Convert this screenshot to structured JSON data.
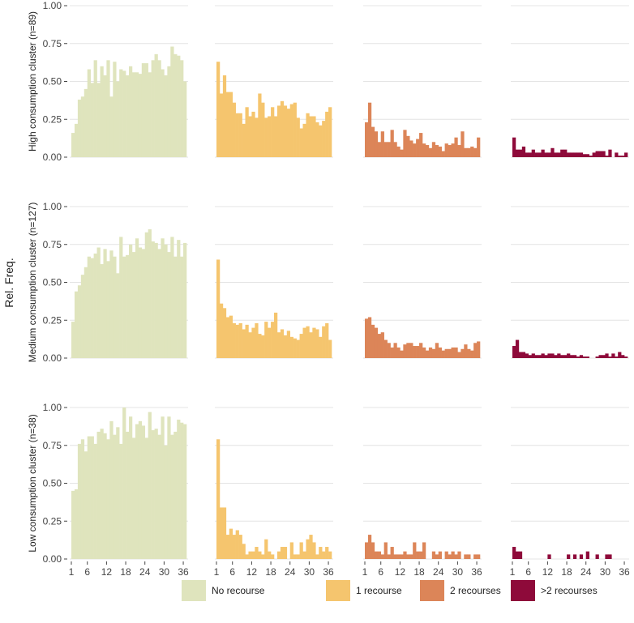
{
  "chart_data": {
    "type": "bar",
    "ylabel": "Rel. Freq.",
    "ylim": [
      0,
      1
    ],
    "yticks": [
      "0.00",
      "0.25",
      "0.50",
      "0.75",
      "1.00"
    ],
    "xticks": [
      "1",
      "6",
      "12",
      "18",
      "24",
      "30",
      "36"
    ],
    "x": [
      1,
      2,
      3,
      4,
      5,
      6,
      7,
      8,
      9,
      10,
      11,
      12,
      13,
      14,
      15,
      16,
      17,
      18,
      19,
      20,
      21,
      22,
      23,
      24,
      25,
      26,
      27,
      28,
      29,
      30,
      31,
      32,
      33,
      34,
      35,
      36
    ],
    "grid": true,
    "legend_position": "bottom",
    "series_meta": [
      {
        "name": "No recourse",
        "color": "#dfe4bd"
      },
      {
        "name": "1 recourse",
        "color": "#f5c56e"
      },
      {
        "name": "2 recourses",
        "color": "#dc8558"
      },
      {
        "name": ">2 recourses",
        "color": "#8e0a3a"
      }
    ],
    "panels": [
      {
        "row_label": "High consumption cluster (n=89)",
        "series": [
          [
            0.16,
            0.22,
            0.38,
            0.4,
            0.45,
            0.58,
            0.49,
            0.64,
            0.49,
            0.6,
            0.54,
            0.64,
            0.4,
            0.63,
            0.5,
            0.58,
            0.57,
            0.54,
            0.6,
            0.56,
            0.56,
            0.55,
            0.62,
            0.62,
            0.56,
            0.64,
            0.68,
            0.64,
            0.58,
            0.54,
            0.6,
            0.73,
            0.68,
            0.67,
            0.64,
            0.5
          ],
          [
            0.63,
            0.42,
            0.54,
            0.43,
            0.43,
            0.36,
            0.29,
            0.29,
            0.22,
            0.33,
            0.27,
            0.3,
            0.26,
            0.42,
            0.36,
            0.26,
            0.27,
            0.33,
            0.27,
            0.34,
            0.37,
            0.34,
            0.32,
            0.35,
            0.36,
            0.26,
            0.19,
            0.22,
            0.29,
            0.27,
            0.27,
            0.23,
            0.21,
            0.24,
            0.3,
            0.33
          ],
          [
            0.23,
            0.36,
            0.2,
            0.17,
            0.1,
            0.17,
            0.1,
            0.1,
            0.18,
            0.1,
            0.07,
            0.05,
            0.18,
            0.14,
            0.11,
            0.09,
            0.12,
            0.16,
            0.09,
            0.08,
            0.06,
            0.1,
            0.08,
            0.07,
            0.04,
            0.09,
            0.08,
            0.09,
            0.13,
            0.08,
            0.17,
            0.06,
            0.06,
            0.07,
            0.06,
            0.13
          ],
          [
            0.13,
            0.05,
            0.05,
            0.07,
            0.03,
            0.03,
            0.05,
            0.03,
            0.03,
            0.05,
            0.03,
            0.03,
            0.06,
            0.03,
            0.03,
            0.05,
            0.05,
            0.03,
            0.03,
            0.03,
            0.03,
            0.03,
            0.02,
            0.02,
            0.01,
            0.03,
            0.04,
            0.04,
            0.04,
            0.01,
            0.05,
            0.0,
            0.03,
            0.01,
            0.01,
            0.03
          ]
        ]
      },
      {
        "row_label": "Medium consumption cluster (n=127)",
        "series": [
          [
            0.24,
            0.44,
            0.48,
            0.55,
            0.6,
            0.67,
            0.66,
            0.69,
            0.73,
            0.62,
            0.72,
            0.64,
            0.71,
            0.67,
            0.56,
            0.8,
            0.67,
            0.68,
            0.75,
            0.7,
            0.79,
            0.73,
            0.72,
            0.83,
            0.85,
            0.77,
            0.76,
            0.72,
            0.79,
            0.75,
            0.7,
            0.8,
            0.67,
            0.78,
            0.67,
            0.76
          ],
          [
            0.65,
            0.36,
            0.33,
            0.27,
            0.28,
            0.23,
            0.22,
            0.23,
            0.19,
            0.22,
            0.17,
            0.2,
            0.23,
            0.16,
            0.15,
            0.24,
            0.2,
            0.24,
            0.3,
            0.17,
            0.19,
            0.15,
            0.18,
            0.14,
            0.13,
            0.12,
            0.16,
            0.2,
            0.21,
            0.17,
            0.2,
            0.19,
            0.14,
            0.21,
            0.23,
            0.12
          ],
          [
            0.26,
            0.27,
            0.22,
            0.2,
            0.16,
            0.17,
            0.12,
            0.1,
            0.07,
            0.1,
            0.07,
            0.05,
            0.09,
            0.1,
            0.1,
            0.08,
            0.08,
            0.1,
            0.07,
            0.05,
            0.07,
            0.06,
            0.1,
            0.07,
            0.05,
            0.06,
            0.06,
            0.07,
            0.07,
            0.04,
            0.06,
            0.09,
            0.06,
            0.05,
            0.1,
            0.11
          ],
          [
            0.08,
            0.12,
            0.04,
            0.04,
            0.03,
            0.02,
            0.03,
            0.02,
            0.02,
            0.03,
            0.02,
            0.03,
            0.03,
            0.02,
            0.03,
            0.02,
            0.02,
            0.03,
            0.02,
            0.02,
            0.01,
            0.02,
            0.01,
            0.01,
            0.0,
            0.0,
            0.01,
            0.02,
            0.02,
            0.03,
            0.01,
            0.03,
            0.01,
            0.04,
            0.02,
            0.01
          ]
        ]
      },
      {
        "row_label": "Low consumption cluster (n=38)",
        "series": [
          [
            0.45,
            0.46,
            0.76,
            0.79,
            0.71,
            0.81,
            0.81,
            0.76,
            0.84,
            0.86,
            0.83,
            0.79,
            0.91,
            0.82,
            0.87,
            0.76,
            1.0,
            0.84,
            0.94,
            0.8,
            0.89,
            0.91,
            0.88,
            0.8,
            0.97,
            0.85,
            0.86,
            0.82,
            0.94,
            0.75,
            0.94,
            0.82,
            0.84,
            0.92,
            0.9,
            0.89
          ],
          [
            0.79,
            0.34,
            0.34,
            0.16,
            0.2,
            0.16,
            0.19,
            0.16,
            0.1,
            0.03,
            0.05,
            0.05,
            0.08,
            0.05,
            0.03,
            0.13,
            0.05,
            0.03,
            0.0,
            0.05,
            0.08,
            0.08,
            0.0,
            0.11,
            0.03,
            0.03,
            0.11,
            0.05,
            0.13,
            0.16,
            0.11,
            0.03,
            0.08,
            0.05,
            0.08,
            0.05
          ],
          [
            0.11,
            0.16,
            0.11,
            0.05,
            0.05,
            0.03,
            0.11,
            0.03,
            0.08,
            0.03,
            0.03,
            0.03,
            0.05,
            0.03,
            0.03,
            0.11,
            0.05,
            0.05,
            0.11,
            0.0,
            0.0,
            0.05,
            0.03,
            0.05,
            0.0,
            0.05,
            0.03,
            0.05,
            0.03,
            0.05,
            0.0,
            0.03,
            0.03,
            0.0,
            0.03,
            0.03
          ],
          [
            0.08,
            0.05,
            0.05,
            0.0,
            0.0,
            0.0,
            0.0,
            0.0,
            0.0,
            0.0,
            0.0,
            0.03,
            0.0,
            0.0,
            0.0,
            0.0,
            0.0,
            0.03,
            0.0,
            0.03,
            0.0,
            0.03,
            0.0,
            0.05,
            0.0,
            0.0,
            0.03,
            0.0,
            0.0,
            0.03,
            0.03,
            0.0,
            0.0,
            0.0,
            0.0,
            0.0
          ]
        ]
      }
    ]
  }
}
